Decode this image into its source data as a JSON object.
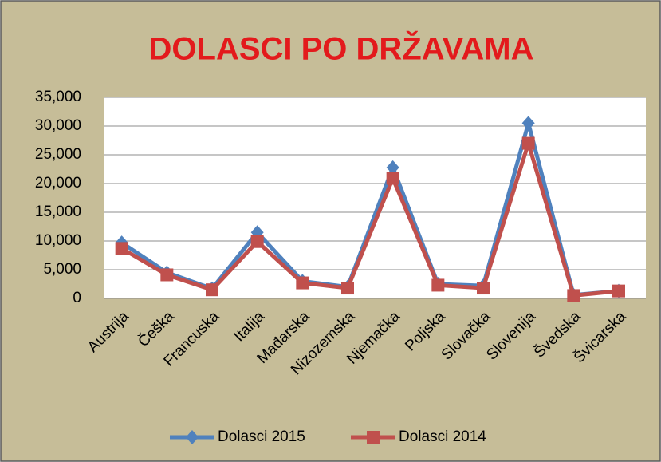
{
  "chart_data": {
    "type": "line",
    "title": "DOLASCI PO DRŽAVAMA",
    "categories": [
      "Austrija",
      "Češka",
      "Francuska",
      "Italija",
      "Mađarska",
      "Nizozemska",
      "Njemačka",
      "Poljska",
      "Slovačka",
      "Slovenija",
      "Švedska",
      "Švicarska"
    ],
    "series": [
      {
        "name": "Dolasci 2015",
        "color": "#4f81bd",
        "marker": "diamond",
        "values": [
          9700,
          4500,
          1700,
          11500,
          3000,
          2000,
          22800,
          2500,
          2200,
          30500,
          600,
          1300
        ]
      },
      {
        "name": "Dolasci 2014",
        "color": "#c0504d",
        "marker": "square",
        "values": [
          8700,
          4100,
          1500,
          9900,
          2700,
          1800,
          20900,
          2300,
          1800,
          27000,
          500,
          1300
        ]
      }
    ],
    "ylim": [
      0,
      35000
    ],
    "yticks": [
      0,
      {
        "value": 5000,
        "label": "5,000"
      },
      {
        "value": 10000,
        "label": "10,000"
      },
      {
        "value": 15000,
        "label": "15,000"
      },
      {
        "value": 20000,
        "label": "20,000"
      },
      {
        "value": 25000,
        "label": "25,000"
      },
      {
        "value": 30000,
        "label": "30,000"
      },
      {
        "value": 35000,
        "label": "35,000"
      }
    ],
    "grid": true,
    "legend": "bottom"
  }
}
